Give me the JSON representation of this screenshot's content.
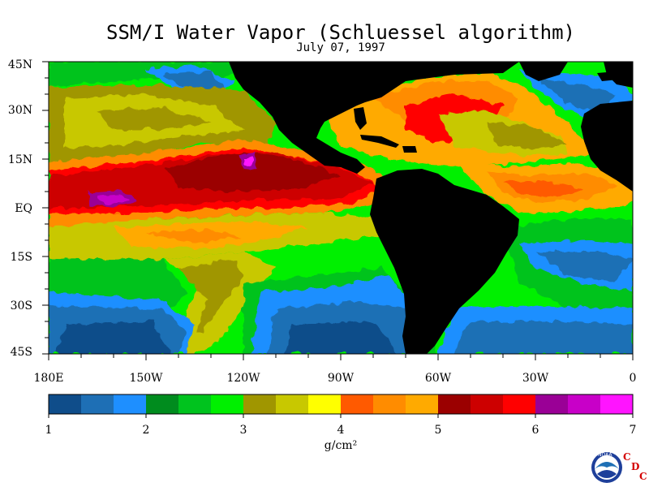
{
  "title": "SSM/I Water Vapor (Schluessel algorithm)",
  "date": "July 07, 1997",
  "lat_labels": [
    "45N",
    "30N",
    "15N",
    "EQ",
    "15S",
    "30S",
    "45S"
  ],
  "lon_labels": [
    "180E",
    "150W",
    "120W",
    "90W",
    "60W",
    "30W",
    "0"
  ],
  "colorbar": {
    "tick_labels": [
      "1",
      "2",
      "3",
      "4",
      "5",
      "6",
      "7"
    ],
    "units": "g/cm²",
    "min": 1,
    "max": 7,
    "colors": [
      "#0f4d8a",
      "#1e6fb5",
      "#1e8fff",
      "#008c1e",
      "#00c31e",
      "#00f000",
      "#a09600",
      "#c8c800",
      "#ffff00",
      "#ff5a00",
      "#ff8c00",
      "#ffaa00",
      "#9b0000",
      "#cd0000",
      "#ff0000",
      "#9a0096",
      "#c800c8",
      "#ff14ff"
    ]
  },
  "map": {
    "land_color": "#000000",
    "ocean_bg_color": "#00f000"
  },
  "logo": {
    "agency": "NOAA",
    "letters": [
      "C",
      "D",
      "C"
    ]
  }
}
